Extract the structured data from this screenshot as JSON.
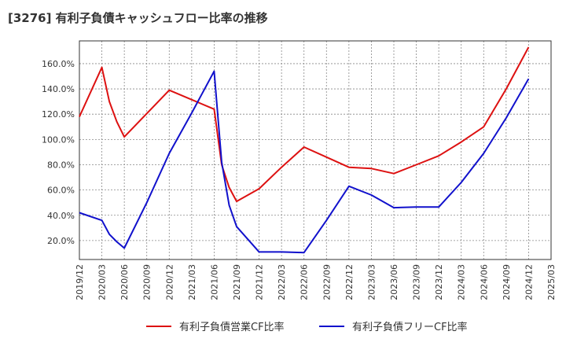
{
  "chart_data": {
    "type": "line",
    "title": "[3276]  有利子負債キャッシュフロー比率の推移",
    "x_ticks": [
      "2019/12",
      "2020/03",
      "2020/06",
      "2020/09",
      "2020/12",
      "2021/03",
      "2021/06",
      "2021/09",
      "2021/12",
      "2022/03",
      "2022/06",
      "2022/09",
      "2022/12",
      "2023/03",
      "2023/06",
      "2023/09",
      "2023/12",
      "2024/03",
      "2024/06",
      "2024/09",
      "2024/12",
      "2025/03"
    ],
    "y_ticks": [
      "20.0%",
      "40.0%",
      "60.0%",
      "80.0%",
      "100.0%",
      "120.0%",
      "140.0%",
      "160.0%"
    ],
    "y_tick_values": [
      20,
      40,
      60,
      80,
      100,
      120,
      140,
      160
    ],
    "ylim": [
      5,
      178
    ],
    "grid": true,
    "legend_position": "bottom",
    "series": [
      {
        "name": "有利子負債営業CF比率",
        "color": "#dd1111",
        "points": [
          [
            "2019/12",
            118
          ],
          [
            "2020/03",
            157
          ],
          [
            "2020/04",
            130
          ],
          [
            "2020/05",
            114
          ],
          [
            "2020/06",
            102
          ],
          [
            "2020/12",
            139
          ],
          [
            "2021/06",
            124
          ],
          [
            "2021/07",
            80
          ],
          [
            "2021/08",
            62
          ],
          [
            "2021/09",
            51
          ],
          [
            "2021/12",
            61
          ],
          [
            "2022/03",
            78
          ],
          [
            "2022/06",
            94
          ],
          [
            "2022/09",
            86
          ],
          [
            "2022/12",
            78
          ],
          [
            "2023/03",
            77
          ],
          [
            "2023/06",
            73
          ],
          [
            "2023/09",
            80
          ],
          [
            "2023/12",
            87
          ],
          [
            "2024/03",
            98
          ],
          [
            "2024/06",
            110
          ],
          [
            "2024/09",
            140
          ],
          [
            "2024/12",
            173
          ]
        ]
      },
      {
        "name": "有利子負債フリーCF比率",
        "color": "#1111cc",
        "points": [
          [
            "2019/12",
            42
          ],
          [
            "2020/03",
            36
          ],
          [
            "2020/04",
            25
          ],
          [
            "2020/05",
            19
          ],
          [
            "2020/06",
            14
          ],
          [
            "2020/09",
            50
          ],
          [
            "2020/12",
            89
          ],
          [
            "2021/03",
            121
          ],
          [
            "2021/06",
            154
          ],
          [
            "2021/07",
            82
          ],
          [
            "2021/08",
            48
          ],
          [
            "2021/09",
            31
          ],
          [
            "2021/12",
            11
          ],
          [
            "2022/03",
            11
          ],
          [
            "2022/06",
            10.5
          ],
          [
            "2022/09",
            36
          ],
          [
            "2022/12",
            63
          ],
          [
            "2023/03",
            56
          ],
          [
            "2023/06",
            46
          ],
          [
            "2023/09",
            46.5
          ],
          [
            "2023/12",
            46.5
          ],
          [
            "2024/03",
            66
          ],
          [
            "2024/06",
            89
          ],
          [
            "2024/09",
            117
          ],
          [
            "2024/12",
            148
          ]
        ]
      }
    ]
  }
}
